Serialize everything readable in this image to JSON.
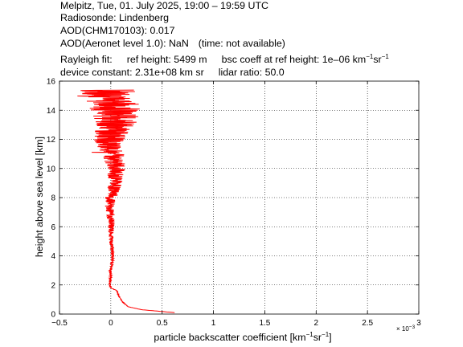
{
  "header": {
    "line1": "Melpitz, Tue, 01. July 2025, 19:00 – 19:59 UTC",
    "line2": "Radiosonde: Lindenberg",
    "line3": "AOD(CHM170103): 0.017",
    "line4a": "AOD(Aeronet level 1.0): NaN",
    "line4b": "(time: not available)",
    "line5_rayleigh": "Rayleigh fit:",
    "line5_refheight": "ref height: 5499 m",
    "line5_bsc_prefix": "bsc coeff at ref height: 1e–06 km",
    "line5_bsc_km_exp": "−1",
    "line5_bsc_sr": "sr",
    "line5_bsc_sr_exp": "−1",
    "line6_device": "device constant: 2.31e+08 km sr",
    "line6_lidar": "lidar ratio: 50.0"
  },
  "chart_data": {
    "type": "line",
    "xlabel_main": "particle backscatter coefficient [km",
    "xlabel_exp1": "−1",
    "xlabel_mid": "sr",
    "xlabel_exp2": "−1",
    "xlabel_end": "]",
    "ylabel": "height above sea level [km]",
    "x_multiplier_label": "× 10",
    "x_multiplier_exp": "−3",
    "xlim": [
      -0.5,
      3
    ],
    "ylim": [
      0,
      16
    ],
    "xticks": [
      "−0.5",
      "0",
      "0.5",
      "1",
      "1.5",
      "2",
      "2.5",
      "3"
    ],
    "yticks": [
      "0",
      "2",
      "4",
      "6",
      "8",
      "10",
      "12",
      "14",
      "16"
    ],
    "grid": true,
    "line_color": "#ff0000",
    "series": [
      {
        "profile": [
          [
            0.1,
            0.62
          ],
          [
            0.3,
            0.3
          ],
          [
            0.5,
            0.17
          ],
          [
            0.8,
            0.12
          ],
          [
            1.2,
            0.08
          ],
          [
            1.6,
            0.06
          ],
          [
            1.8,
            0.0
          ],
          [
            2.0,
            -0.01
          ],
          [
            3.0,
            0.0
          ],
          [
            4.0,
            0.02
          ],
          [
            5.0,
            0.0
          ],
          [
            6.0,
            0.01
          ],
          [
            7.0,
            -0.01
          ],
          [
            8.0,
            0.0
          ],
          [
            9.0,
            0.05
          ],
          [
            10.0,
            0.05
          ],
          [
            11.0,
            0.02
          ],
          [
            12.0,
            -0.02
          ],
          [
            13.0,
            0.05
          ],
          [
            14.0,
            0.05
          ],
          [
            15.0,
            -0.05
          ],
          [
            15.4,
            -0.05
          ]
        ],
        "spread": [
          [
            0.0,
            0.004
          ],
          [
            1.8,
            0.005
          ],
          [
            2.0,
            0.01
          ],
          [
            5.0,
            0.02
          ],
          [
            7.0,
            0.04
          ],
          [
            9.0,
            0.07
          ],
          [
            11.0,
            0.11
          ],
          [
            12.5,
            0.17
          ],
          [
            14.0,
            0.25
          ],
          [
            15.4,
            0.3
          ]
        ]
      }
    ]
  }
}
